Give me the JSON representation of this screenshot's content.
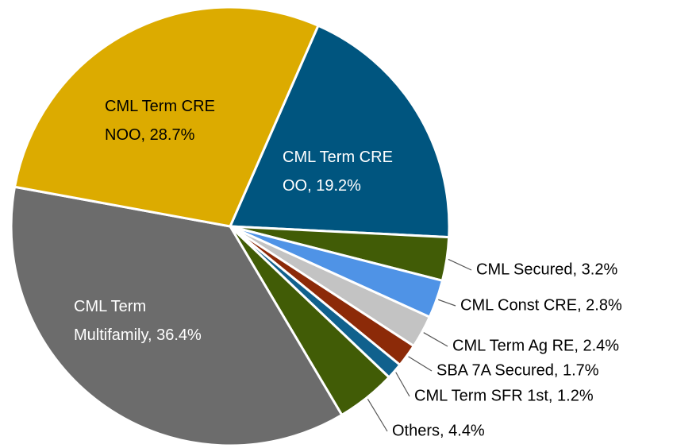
{
  "chart_data": {
    "type": "pie",
    "values": [
      19.2,
      3.2,
      2.8,
      2.4,
      1.7,
      1.2,
      4.4,
      36.4,
      28.7
    ],
    "value_labels": [
      "CML Term CRE OO, 19.2%",
      "CML Secured, 3.2%",
      "CML Const CRE, 2.8%",
      "CML Term Ag RE, 2.4%",
      "SBA 7A Secured, 1.7%",
      "CML Term SFR 1st, 1.2%",
      "Others, 4.4%",
      "CML Term Multifamily, 36.4%",
      "CML Term CRE NOO, 28.7%"
    ],
    "colors": [
      "#00557f",
      "#415c06",
      "#4f93e6",
      "#c3c3c3",
      "#8c2a08",
      "#10618d",
      "#415c06",
      "#6c6c6c",
      "#dcab00"
    ]
  }
}
